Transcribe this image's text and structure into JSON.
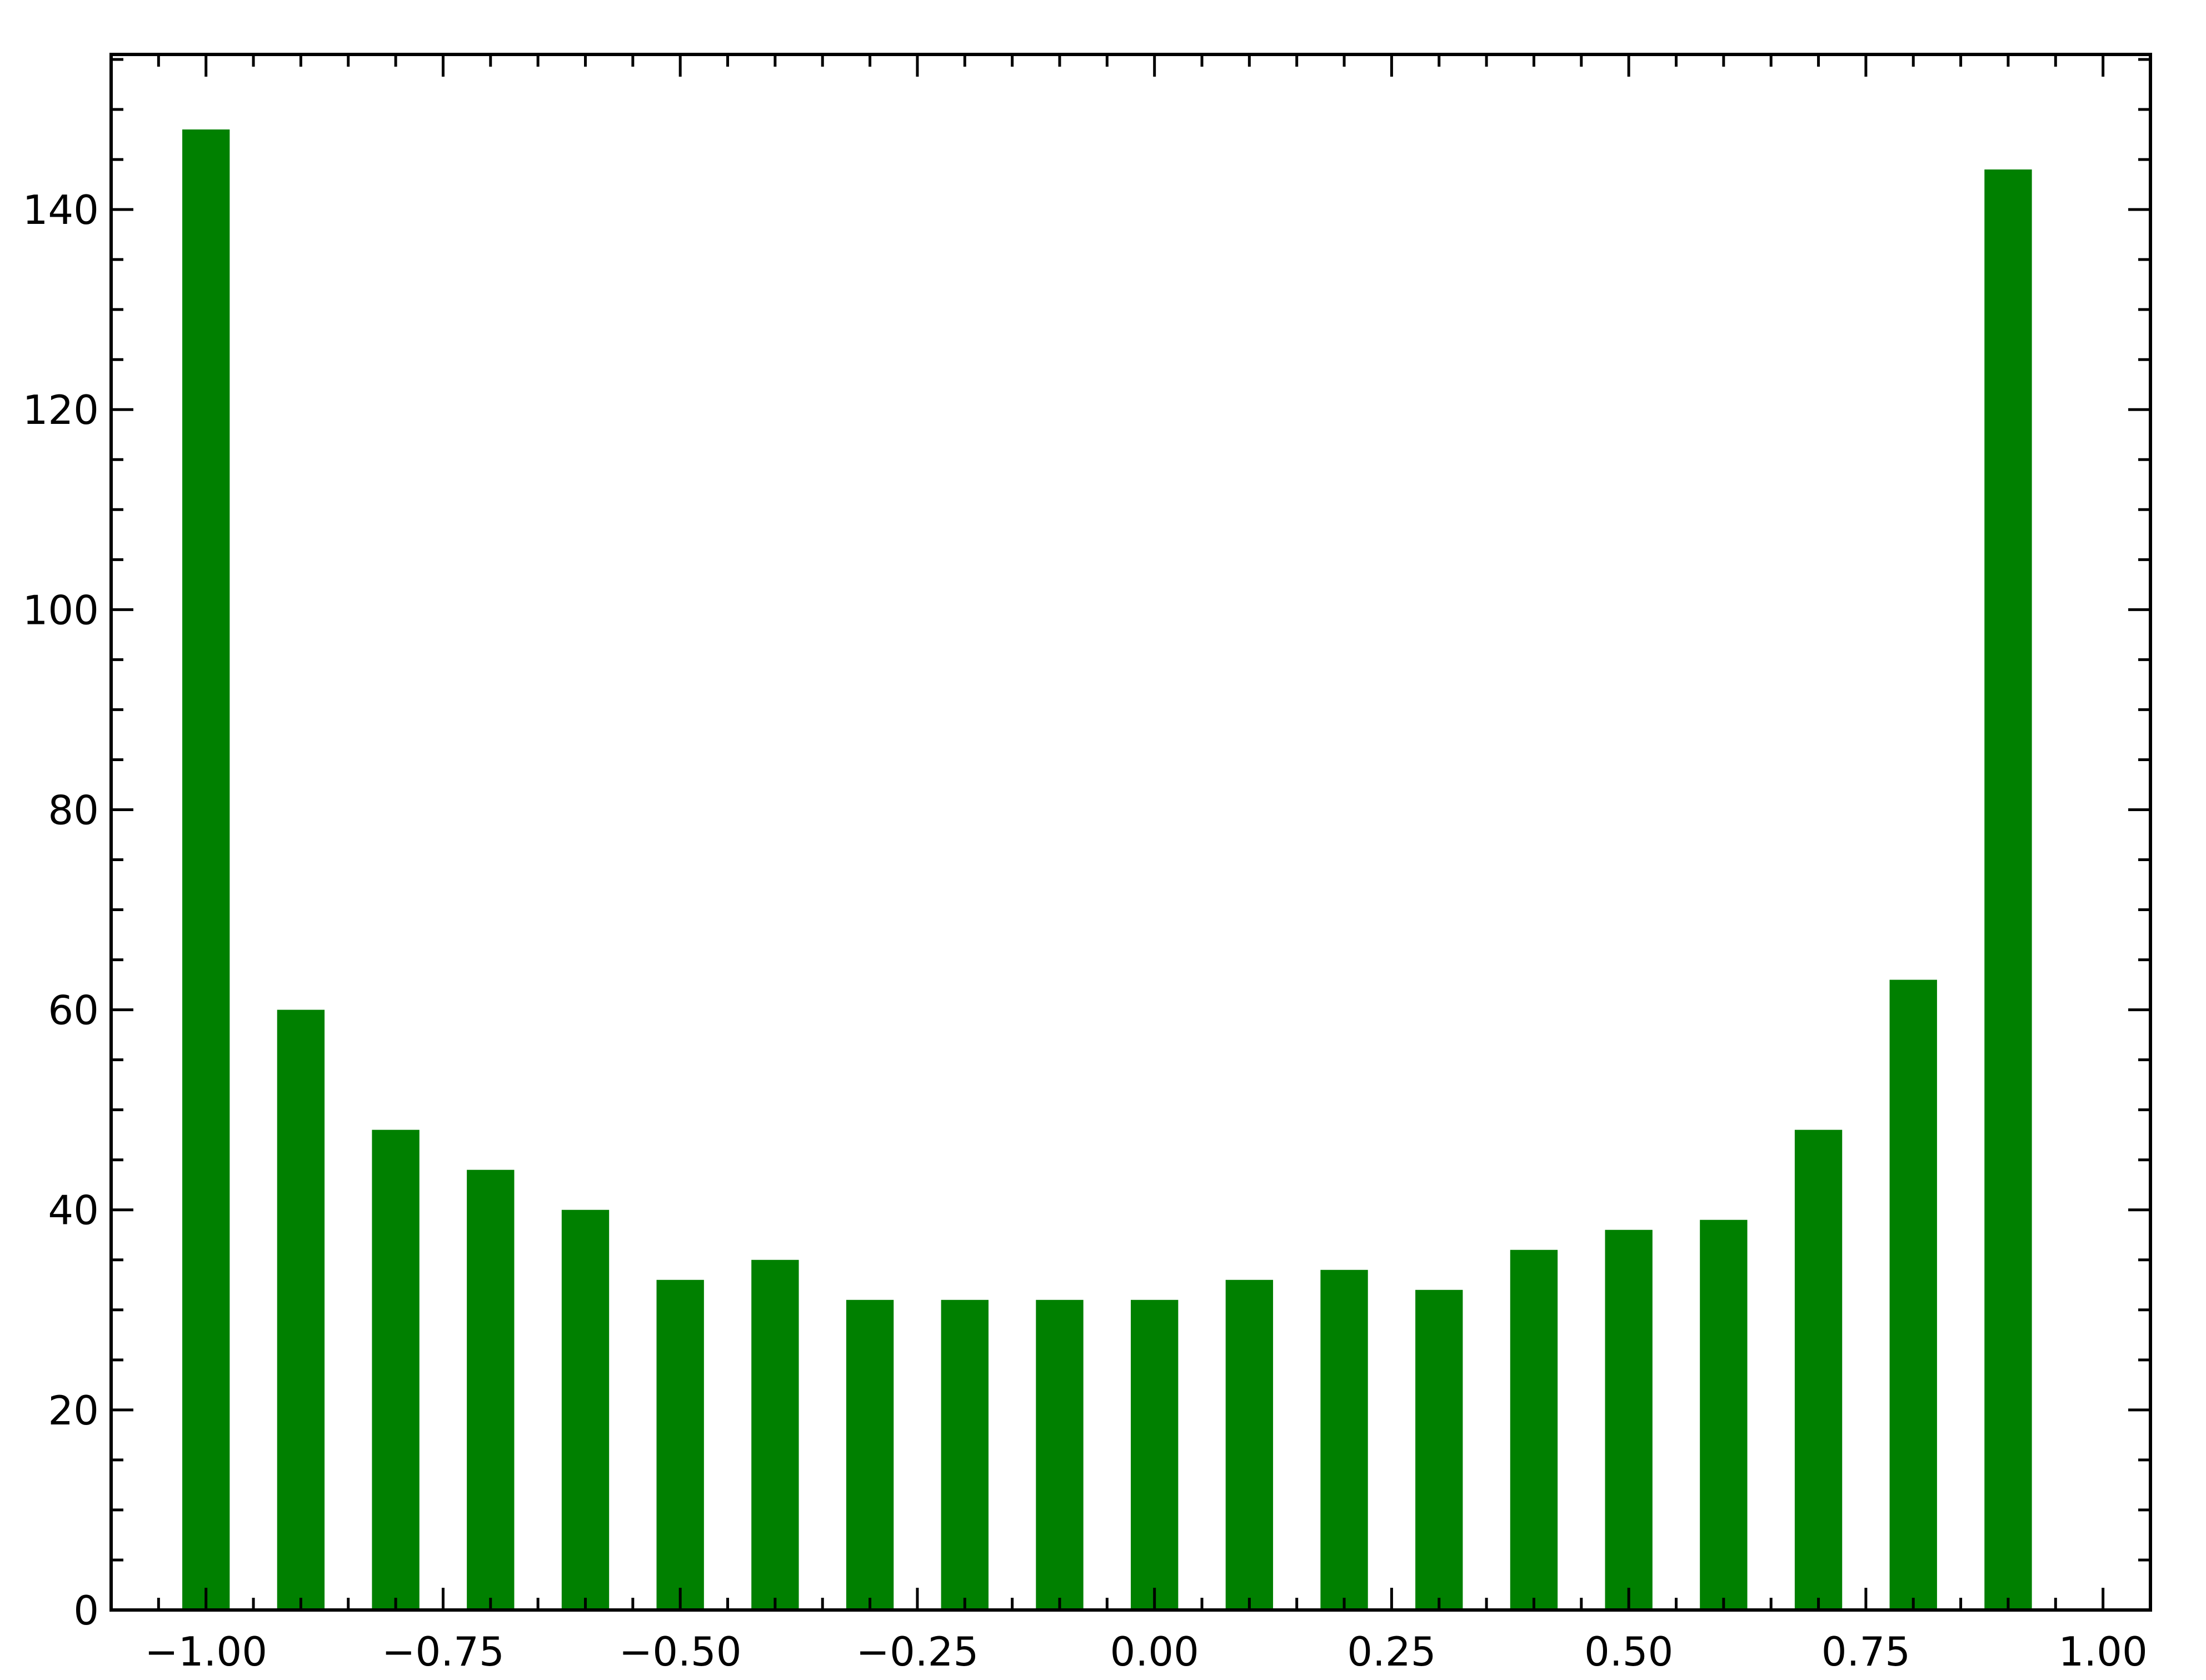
{
  "chart_data": {
    "type": "bar",
    "x": [
      -1.0,
      -0.9,
      -0.8,
      -0.7,
      -0.6,
      -0.5,
      -0.4,
      -0.3,
      -0.2,
      -0.1,
      0.0,
      0.1,
      0.2,
      0.3,
      0.4,
      0.5,
      0.6,
      0.7,
      0.8,
      0.9
    ],
    "values": [
      148,
      60,
      48,
      44,
      40,
      33,
      35,
      31,
      31,
      31,
      31,
      33,
      34,
      32,
      36,
      38,
      39,
      48,
      63,
      144
    ],
    "bar_width": 0.05,
    "bar_color": "#008000",
    "title": "",
    "xlabel": "",
    "ylabel": "",
    "xlim": [
      -1.1,
      1.05
    ],
    "ylim": [
      0,
      155.5
    ],
    "x_ticks": [
      -1.0,
      -0.75,
      -0.5,
      -0.25,
      0.0,
      0.25,
      0.5,
      0.75,
      1.0
    ],
    "x_tick_labels": [
      "−1.00",
      "−0.75",
      "−0.50",
      "−0.25",
      "0.00",
      "0.25",
      "0.50",
      "0.75",
      "1.00"
    ],
    "x_minor_step": 0.05,
    "y_ticks": [
      0,
      20,
      40,
      60,
      80,
      100,
      120,
      140
    ],
    "y_tick_labels": [
      "0",
      "20",
      "40",
      "60",
      "80",
      "100",
      "120",
      "140"
    ],
    "y_minor_step": 5,
    "grid": false,
    "legend": "none"
  }
}
